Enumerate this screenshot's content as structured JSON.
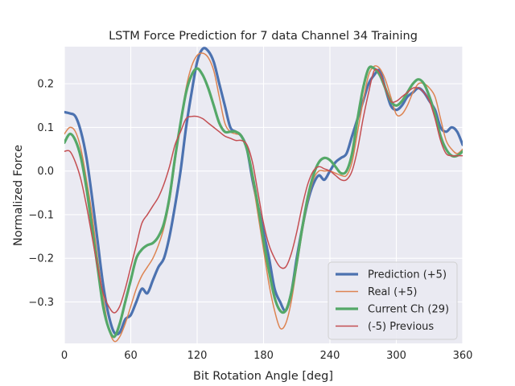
{
  "chart_data": {
    "type": "line",
    "title": "LSTM Force Prediction for 7 data Channel 34 Training",
    "xlabel": "Bit Rotation Angle [deg]",
    "ylabel": "Normalized Force",
    "xlim": [
      0,
      360
    ],
    "ylim": [
      -0.395,
      0.285
    ],
    "xticks": [
      0,
      60,
      120,
      180,
      240,
      300,
      360
    ],
    "xtick_labels": [
      "0",
      "60",
      "120",
      "180",
      "240",
      "300",
      "360"
    ],
    "yticks": [
      -0.3,
      -0.2,
      -0.1,
      0.0,
      0.1,
      0.2
    ],
    "ytick_labels": [
      "−0.3",
      "−0.2",
      "−0.1",
      "0.0",
      "0.1",
      "0.2"
    ],
    "grid": true,
    "legend_position": "lower-right",
    "background": "#eaeaf2",
    "series": [
      {
        "name": "Prediction (+5)",
        "color": "#4c72b0",
        "width": 3.2,
        "x": [
          0,
          5,
          10,
          15,
          20,
          25,
          30,
          35,
          40,
          45,
          50,
          55,
          60,
          65,
          70,
          75,
          80,
          85,
          90,
          95,
          100,
          105,
          110,
          115,
          120,
          125,
          130,
          135,
          140,
          145,
          150,
          155,
          160,
          165,
          170,
          175,
          180,
          185,
          190,
          195,
          200,
          205,
          210,
          215,
          220,
          225,
          230,
          235,
          240,
          245,
          250,
          255,
          260,
          265,
          270,
          275,
          280,
          285,
          290,
          295,
          300,
          305,
          310,
          315,
          320,
          325,
          330,
          335,
          340,
          345,
          350,
          355,
          360
        ],
        "y": [
          0.135,
          0.132,
          0.125,
          0.09,
          0.03,
          -0.06,
          -0.16,
          -0.26,
          -0.33,
          -0.37,
          -0.37,
          -0.34,
          -0.33,
          -0.3,
          -0.27,
          -0.28,
          -0.25,
          -0.22,
          -0.2,
          -0.15,
          -0.08,
          0.0,
          0.1,
          0.18,
          0.25,
          0.28,
          0.275,
          0.25,
          0.2,
          0.15,
          0.1,
          0.09,
          0.08,
          0.05,
          -0.02,
          -0.08,
          -0.14,
          -0.2,
          -0.27,
          -0.3,
          -0.32,
          -0.28,
          -0.2,
          -0.13,
          -0.07,
          -0.03,
          -0.01,
          -0.02,
          0.0,
          0.02,
          0.03,
          0.04,
          0.08,
          0.12,
          0.16,
          0.2,
          0.22,
          0.23,
          0.19,
          0.15,
          0.14,
          0.15,
          0.17,
          0.18,
          0.19,
          0.18,
          0.16,
          0.14,
          0.1,
          0.09,
          0.1,
          0.09,
          0.06
        ]
      },
      {
        "name": "Real (+5)",
        "color": "#dd8452",
        "width": 1.5,
        "x": [
          0,
          5,
          10,
          15,
          20,
          25,
          30,
          35,
          40,
          45,
          50,
          55,
          60,
          65,
          70,
          75,
          80,
          85,
          90,
          95,
          100,
          105,
          110,
          115,
          120,
          125,
          130,
          135,
          140,
          145,
          150,
          155,
          160,
          165,
          170,
          175,
          180,
          185,
          190,
          195,
          200,
          205,
          210,
          215,
          220,
          225,
          230,
          235,
          240,
          245,
          250,
          255,
          260,
          265,
          270,
          275,
          280,
          285,
          290,
          295,
          300,
          305,
          310,
          315,
          320,
          325,
          330,
          335,
          340,
          345,
          350,
          355,
          360
        ],
        "y": [
          0.085,
          0.1,
          0.09,
          0.05,
          -0.02,
          -0.1,
          -0.2,
          -0.29,
          -0.36,
          -0.39,
          -0.38,
          -0.35,
          -0.31,
          -0.27,
          -0.24,
          -0.22,
          -0.2,
          -0.17,
          -0.13,
          -0.07,
          0.02,
          0.11,
          0.19,
          0.24,
          0.265,
          0.27,
          0.26,
          0.23,
          0.17,
          0.11,
          0.09,
          0.085,
          0.08,
          0.05,
          -0.02,
          -0.1,
          -0.18,
          -0.26,
          -0.32,
          -0.36,
          -0.35,
          -0.3,
          -0.22,
          -0.14,
          -0.07,
          -0.02,
          0.0,
          0.0,
          0.0,
          -0.005,
          -0.01,
          -0.01,
          0.02,
          0.09,
          0.16,
          0.22,
          0.24,
          0.235,
          0.21,
          0.17,
          0.13,
          0.13,
          0.15,
          0.18,
          0.2,
          0.2,
          0.19,
          0.17,
          0.12,
          0.07,
          0.05,
          0.04,
          0.05
        ]
      },
      {
        "name": "Current Ch (29)",
        "color": "#55a868",
        "width": 3.2,
        "x": [
          0,
          5,
          10,
          15,
          20,
          25,
          30,
          35,
          40,
          45,
          50,
          55,
          60,
          65,
          70,
          75,
          80,
          85,
          90,
          95,
          100,
          105,
          110,
          115,
          120,
          125,
          130,
          135,
          140,
          145,
          150,
          155,
          160,
          165,
          170,
          175,
          180,
          185,
          190,
          195,
          200,
          205,
          210,
          215,
          220,
          225,
          230,
          235,
          240,
          245,
          250,
          255,
          260,
          265,
          270,
          275,
          280,
          285,
          290,
          295,
          300,
          305,
          310,
          315,
          320,
          325,
          330,
          335,
          340,
          345,
          350,
          355,
          360
        ],
        "y": [
          0.065,
          0.085,
          0.07,
          0.03,
          -0.04,
          -0.13,
          -0.22,
          -0.31,
          -0.36,
          -0.38,
          -0.35,
          -0.3,
          -0.25,
          -0.2,
          -0.18,
          -0.17,
          -0.165,
          -0.15,
          -0.12,
          -0.06,
          0.03,
          0.11,
          0.18,
          0.22,
          0.235,
          0.22,
          0.19,
          0.15,
          0.11,
          0.09,
          0.09,
          0.09,
          0.08,
          0.05,
          -0.01,
          -0.08,
          -0.16,
          -0.23,
          -0.29,
          -0.32,
          -0.32,
          -0.28,
          -0.21,
          -0.13,
          -0.06,
          -0.01,
          0.02,
          0.03,
          0.025,
          0.01,
          -0.005,
          0.0,
          0.04,
          0.12,
          0.19,
          0.235,
          0.235,
          0.22,
          0.19,
          0.16,
          0.15,
          0.16,
          0.18,
          0.2,
          0.21,
          0.2,
          0.17,
          0.13,
          0.08,
          0.05,
          0.035,
          0.035,
          0.045
        ]
      },
      {
        "name": "(-5) Previous",
        "color": "#c44e52",
        "width": 1.5,
        "x": [
          0,
          5,
          10,
          15,
          20,
          25,
          30,
          35,
          40,
          45,
          50,
          55,
          60,
          65,
          70,
          75,
          80,
          85,
          90,
          95,
          100,
          105,
          110,
          115,
          120,
          125,
          130,
          135,
          140,
          145,
          150,
          155,
          160,
          165,
          170,
          175,
          180,
          185,
          190,
          195,
          200,
          205,
          210,
          215,
          220,
          225,
          230,
          235,
          240,
          245,
          250,
          255,
          260,
          265,
          270,
          275,
          280,
          285,
          290,
          295,
          300,
          305,
          310,
          315,
          320,
          325,
          330,
          335,
          340,
          345,
          350,
          355,
          360
        ],
        "y": [
          0.045,
          0.045,
          0.02,
          -0.02,
          -0.08,
          -0.15,
          -0.22,
          -0.28,
          -0.31,
          -0.325,
          -0.31,
          -0.27,
          -0.22,
          -0.17,
          -0.12,
          -0.1,
          -0.08,
          -0.06,
          -0.03,
          0.01,
          0.06,
          0.09,
          0.12,
          0.125,
          0.125,
          0.12,
          0.11,
          0.1,
          0.09,
          0.08,
          0.075,
          0.07,
          0.07,
          0.06,
          0.02,
          -0.05,
          -0.12,
          -0.17,
          -0.2,
          -0.22,
          -0.22,
          -0.19,
          -0.14,
          -0.08,
          -0.03,
          0.0,
          0.01,
          0.005,
          0.0,
          -0.01,
          -0.02,
          -0.02,
          0.0,
          0.05,
          0.12,
          0.18,
          0.23,
          0.225,
          0.19,
          0.16,
          0.16,
          0.17,
          0.18,
          0.19,
          0.19,
          0.18,
          0.16,
          0.12,
          0.07,
          0.04,
          0.035,
          0.035,
          0.035
        ]
      }
    ]
  }
}
